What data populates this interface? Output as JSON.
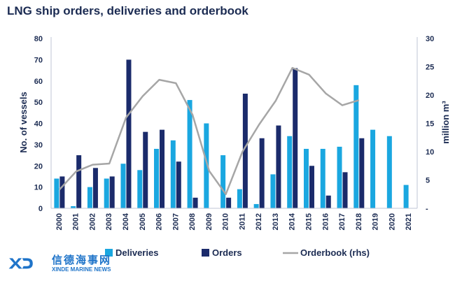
{
  "chart_data": {
    "type": "bar",
    "title": "LNG ship orders, deliveries and orderbook",
    "categories": [
      "2000",
      "2001",
      "2002",
      "2003",
      "2004",
      "2005",
      "2006",
      "2007",
      "2008",
      "2009",
      "2010",
      "2011",
      "2012",
      "2013",
      "2014",
      "2015",
      "2016",
      "2017",
      "2018",
      "2019",
      "2020",
      "2021"
    ],
    "series": [
      {
        "name": "Deliveries",
        "kind": "bar",
        "axis": "left",
        "color": "#1aa7e0",
        "values": [
          14,
          1,
          10,
          14,
          21,
          18,
          28,
          32,
          51,
          40,
          25,
          9,
          2,
          16,
          34,
          28,
          28,
          29,
          58,
          37,
          34,
          11
        ]
      },
      {
        "name": "Orders",
        "kind": "bar",
        "axis": "left",
        "color": "#1b2b6b",
        "values": [
          15,
          25,
          19,
          15,
          70,
          36,
          37,
          22,
          5,
          null,
          5,
          54,
          33,
          39,
          66,
          20,
          6,
          17,
          33,
          null,
          null,
          null
        ]
      },
      {
        "name": "Orderbook (rhs)",
        "kind": "line",
        "axis": "right",
        "color": "#a6a6a6",
        "values": [
          3.3,
          6.5,
          7.7,
          7.9,
          16,
          19.8,
          22.7,
          22.1,
          16.5,
          6.6,
          2.5,
          10,
          14.8,
          19,
          24.8,
          23.6,
          20.3,
          18.2,
          19.1,
          null,
          null,
          null
        ]
      }
    ],
    "ylabel": "No. of vessels",
    "y2label": "million m³",
    "ylim": [
      0,
      80
    ],
    "y2lim": [
      0,
      30
    ],
    "yticks": [
      0,
      10,
      20,
      30,
      40,
      50,
      60,
      70,
      80
    ],
    "y2ticks": [
      "-",
      "5",
      "10",
      "15",
      "20",
      "25",
      "30"
    ],
    "grid": false,
    "legend_position": "bottom"
  },
  "logo": {
    "chinese": "信德海事网",
    "english": "XINDE MARINE NEWS"
  }
}
